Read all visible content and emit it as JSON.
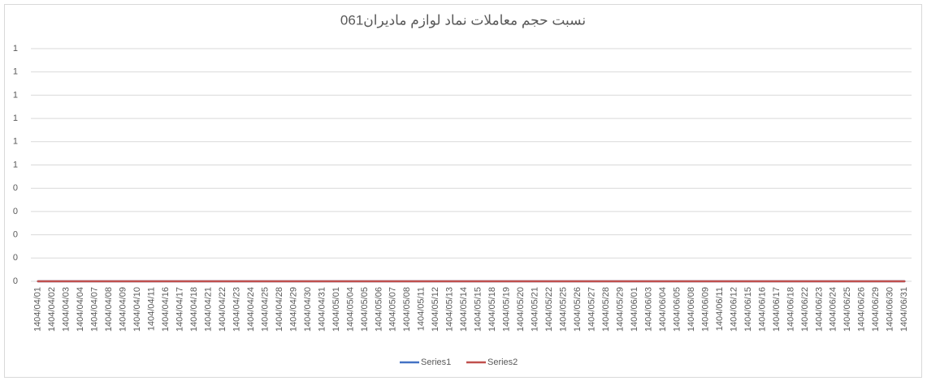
{
  "chart_data": {
    "type": "line",
    "title": "نسبت حجم معاملات نماد لوازم مادیران061",
    "categories": [
      "1404/04/01",
      "1404/04/02",
      "1404/04/03",
      "1404/04/04",
      "1404/04/07",
      "1404/04/08",
      "1404/04/09",
      "1404/04/10",
      "1404/04/11",
      "1404/04/16",
      "1404/04/17",
      "1404/04/18",
      "1404/04/21",
      "1404/04/22",
      "1404/04/23",
      "1404/04/24",
      "1404/04/25",
      "1404/04/28",
      "1404/04/29",
      "1404/04/30",
      "1404/04/31",
      "1404/05/01",
      "1404/05/04",
      "1404/05/05",
      "1404/05/06",
      "1404/05/07",
      "1404/05/08",
      "1404/05/11",
      "1404/05/12",
      "1404/05/13",
      "1404/05/14",
      "1404/05/15",
      "1404/05/18",
      "1404/05/19",
      "1404/05/20",
      "1404/05/21",
      "1404/05/22",
      "1404/05/25",
      "1404/05/26",
      "1404/05/27",
      "1404/05/28",
      "1404/05/29",
      "1404/06/01",
      "1404/06/03",
      "1404/06/04",
      "1404/06/05",
      "1404/06/08",
      "1404/06/09",
      "1404/06/11",
      "1404/06/12",
      "1404/06/15",
      "1404/06/16",
      "1404/06/17",
      "1404/06/18",
      "1404/06/22",
      "1404/06/23",
      "1404/06/24",
      "1404/06/25",
      "1404/06/26",
      "1404/06/29",
      "1404/06/30",
      "1404/06/31"
    ],
    "series": [
      {
        "name": "Series1",
        "color": "#4472c4",
        "values": [
          0,
          0,
          0,
          0,
          0,
          0,
          0,
          0,
          0,
          0,
          0,
          0,
          0,
          0,
          0,
          0,
          0,
          0,
          0,
          0,
          0,
          0,
          0,
          0,
          0,
          0,
          0,
          0,
          0,
          0,
          0,
          0,
          0,
          0,
          0,
          0,
          0,
          0,
          0,
          0,
          0,
          0,
          0,
          0,
          0,
          0,
          0,
          0,
          0,
          0,
          0,
          0,
          0,
          0,
          0,
          0,
          0,
          0,
          0,
          0,
          0,
          0
        ]
      },
      {
        "name": "Series2",
        "color": "#c0504d",
        "values": [
          0,
          0,
          0,
          0,
          0,
          0,
          0,
          0,
          0,
          0,
          0,
          0,
          0,
          0,
          0,
          0,
          0,
          0,
          0,
          0,
          0,
          0,
          0,
          0,
          0,
          0,
          0,
          0,
          0,
          0,
          0,
          0,
          0,
          0,
          0,
          0,
          0,
          0,
          0,
          0,
          0,
          0,
          0,
          0,
          0,
          0,
          0,
          0,
          0,
          0,
          0,
          0,
          0,
          0,
          0,
          0,
          0,
          0,
          0,
          0,
          0,
          0
        ]
      }
    ],
    "ylim": [
      0,
      1
    ],
    "yticks": [
      0,
      {
        "value": 0.1,
        "label": "0"
      },
      {
        "value": 0.2,
        "label": "0"
      },
      {
        "value": 0.3,
        "label": "0"
      },
      {
        "value": 0.4,
        "label": "0"
      },
      {
        "value": 0.5,
        "label": "1"
      },
      {
        "value": 0.6,
        "label": "1"
      },
      {
        "value": 0.7,
        "label": "1"
      },
      {
        "value": 0.8,
        "label": "1"
      },
      {
        "value": 0.9,
        "label": "1"
      },
      1
    ],
    "grid": true,
    "legend": "bottom"
  }
}
